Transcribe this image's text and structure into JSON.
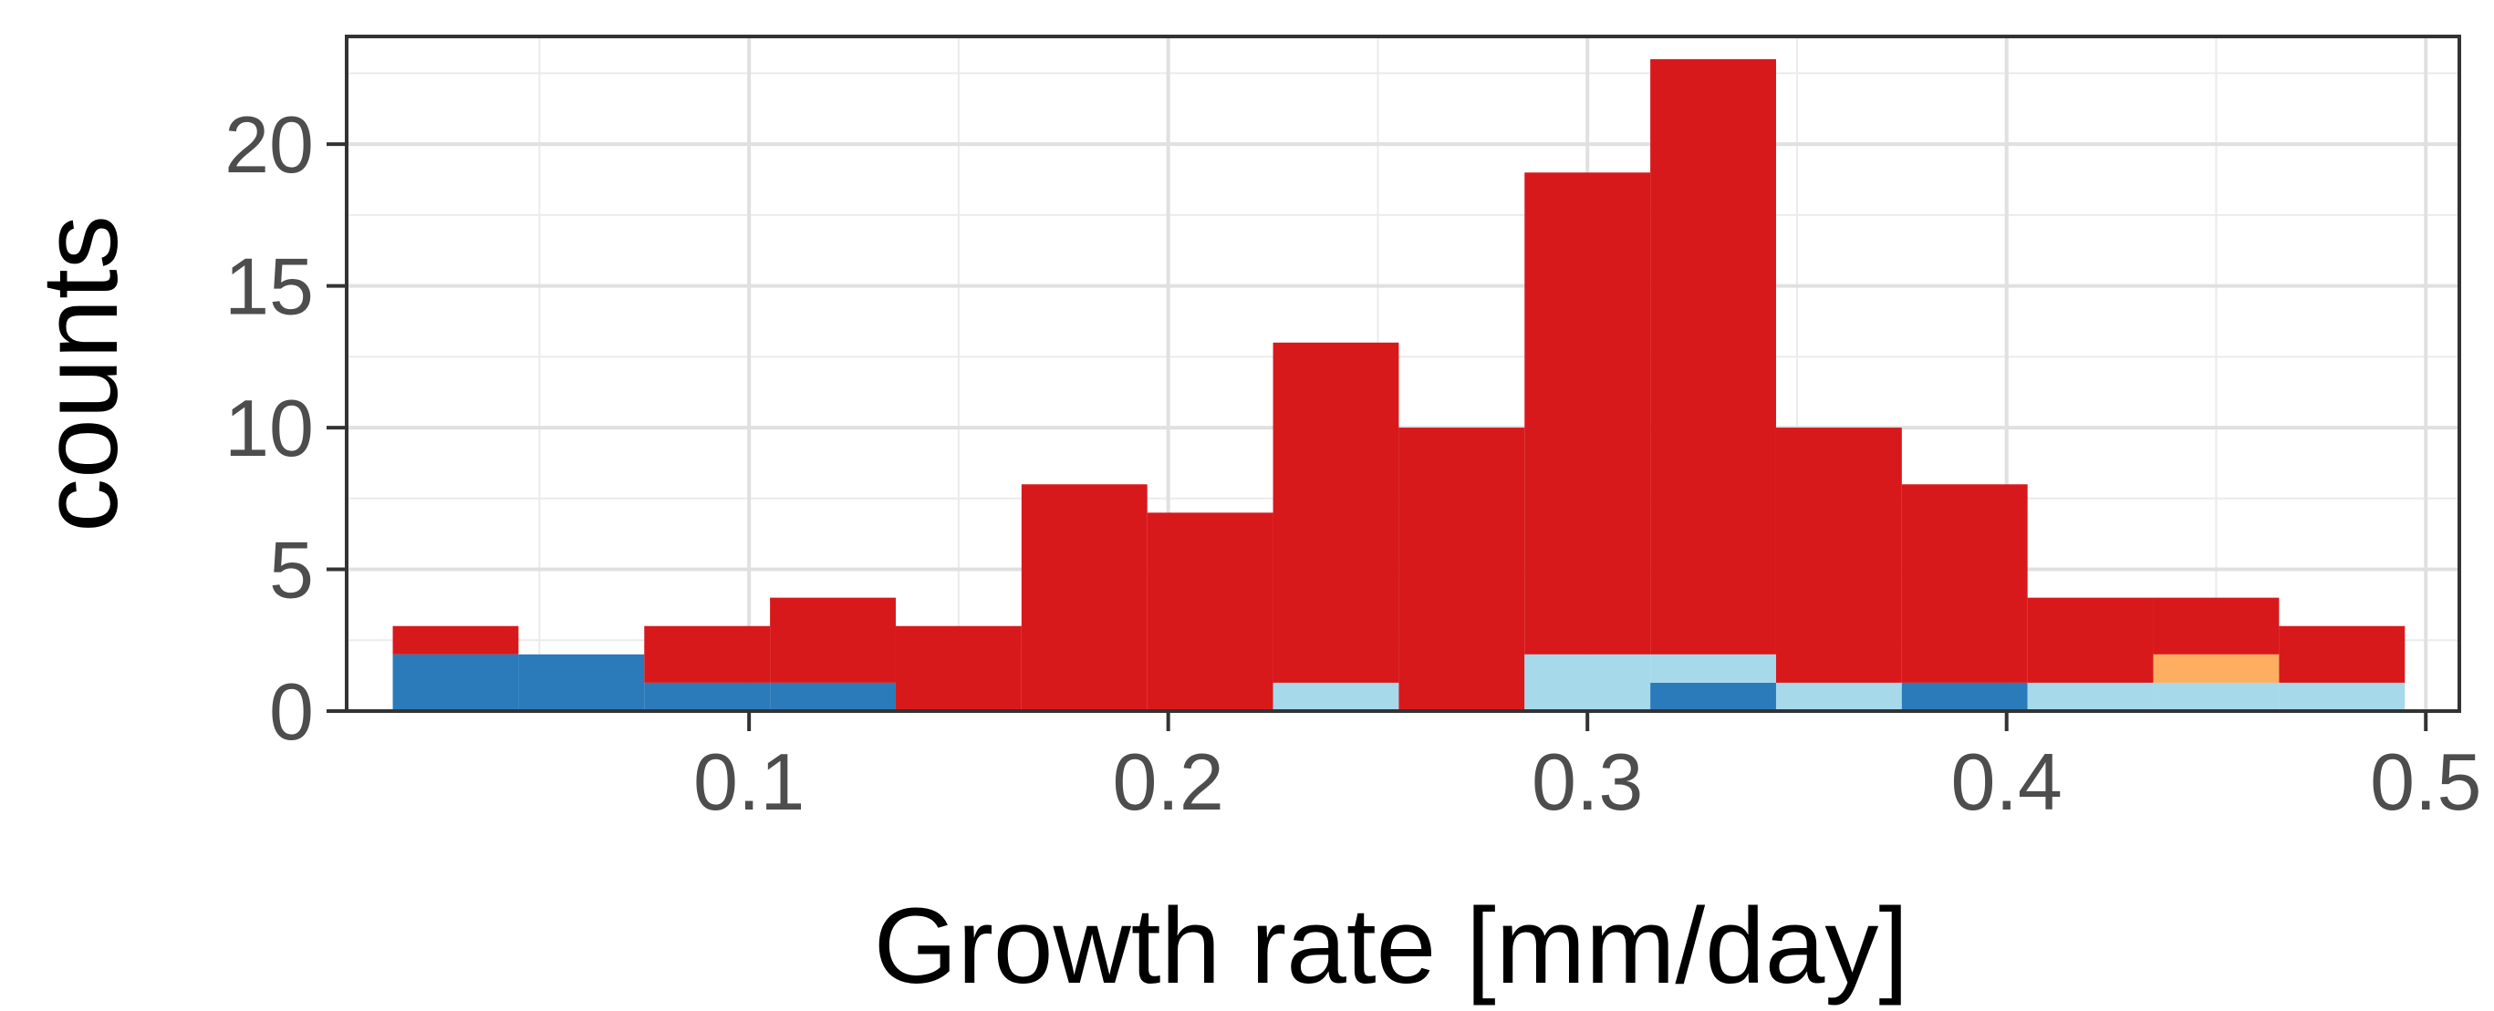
{
  "chart_data": {
    "type": "bar",
    "stacked": true,
    "xlabel": "Growth rate [mm/day]",
    "ylabel": "counts",
    "xlim": [
      0.004,
      0.508
    ],
    "ylim": [
      0,
      23.8
    ],
    "bin_width": 0.03,
    "bin_starts": [
      0.015,
      0.045,
      0.075,
      0.105,
      0.135,
      0.165,
      0.195,
      0.225,
      0.255,
      0.285,
      0.315,
      0.345,
      0.375,
      0.405,
      0.435,
      0.465
    ],
    "x_ticks": [
      0.1,
      0.2,
      0.3,
      0.4,
      0.5
    ],
    "x_tick_labels": [
      "0.1",
      "0.2",
      "0.3",
      "0.4",
      "0.5"
    ],
    "y_ticks": [
      0,
      5,
      10,
      15,
      20
    ],
    "y_tick_labels": [
      "0",
      "5",
      "10",
      "15",
      "20"
    ],
    "grid": true,
    "legend": "none",
    "series": [
      {
        "color": "#2b7bba",
        "values": [
          2,
          2,
          1,
          1,
          0,
          0,
          0,
          0,
          0,
          0,
          1,
          0,
          1,
          0,
          0,
          0
        ]
      },
      {
        "color": "#a6d9ea",
        "values": [
          0,
          0,
          0,
          0,
          0,
          0,
          0,
          1,
          0,
          2,
          1,
          1,
          0,
          1,
          1,
          1
        ]
      },
      {
        "color": "#fdae61",
        "values": [
          0,
          0,
          0,
          0,
          0,
          0,
          0,
          0,
          0,
          0,
          0,
          0,
          0,
          0,
          1,
          0
        ]
      },
      {
        "color": "#d7191c",
        "values": [
          1,
          0,
          2,
          3,
          3,
          8,
          7,
          12,
          10,
          17,
          21,
          9,
          7,
          3,
          2,
          2
        ]
      }
    ]
  }
}
